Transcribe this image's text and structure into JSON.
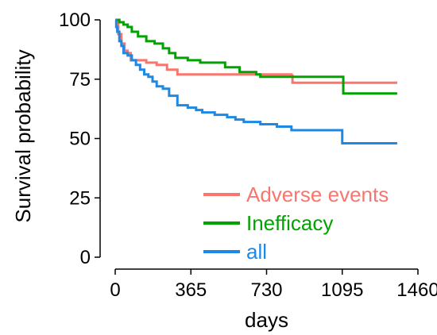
{
  "chart_data": {
    "type": "line",
    "title": "",
    "xlabel": "days",
    "ylabel": "Survival probability",
    "xlim": [
      0,
      1460
    ],
    "ylim": [
      0,
      100
    ],
    "x_ticks": [
      0,
      365,
      730,
      1095,
      1460
    ],
    "y_ticks": [
      0,
      25,
      50,
      75,
      100
    ],
    "x_tick_labels": [
      "0",
      "365",
      "730",
      "1095",
      "1460"
    ],
    "y_tick_labels": [
      "0",
      "25",
      "50",
      "75",
      "100"
    ],
    "grid": false,
    "legend_position": "bottom-right",
    "series": [
      {
        "name": "Adverse events",
        "color": "#F8766D",
        "points": [
          [
            0,
            100
          ],
          [
            15,
            94
          ],
          [
            30,
            90
          ],
          [
            45,
            87
          ],
          [
            60,
            86
          ],
          [
            75,
            83
          ],
          [
            150,
            82
          ],
          [
            200,
            81
          ],
          [
            250,
            79
          ],
          [
            300,
            77
          ],
          [
            350,
            77
          ],
          [
            500,
            77
          ],
          [
            580,
            77
          ],
          [
            640,
            77
          ],
          [
            700,
            77
          ],
          [
            850,
            76.5
          ],
          [
            855,
            73.5
          ],
          [
            1000,
            73.5
          ],
          [
            1090,
            73.5
          ],
          [
            1220,
            73.5
          ],
          [
            1360,
            73.5
          ]
        ]
      },
      {
        "name": "Inefficacy",
        "color": "#00A300",
        "points": [
          [
            0,
            100
          ],
          [
            20,
            99
          ],
          [
            40,
            98
          ],
          [
            60,
            97
          ],
          [
            80,
            95
          ],
          [
            110,
            93
          ],
          [
            150,
            91
          ],
          [
            190,
            90
          ],
          [
            230,
            88
          ],
          [
            260,
            86
          ],
          [
            290,
            84
          ],
          [
            350,
            83
          ],
          [
            410,
            82
          ],
          [
            460,
            82
          ],
          [
            530,
            80
          ],
          [
            600,
            78
          ],
          [
            680,
            77
          ],
          [
            700,
            76
          ],
          [
            850,
            76
          ],
          [
            1000,
            76
          ],
          [
            1095,
            76
          ],
          [
            1100,
            69
          ],
          [
            1200,
            69
          ],
          [
            1360,
            69
          ]
        ]
      },
      {
        "name": "all",
        "color": "#1E88E5",
        "points": [
          [
            0,
            100
          ],
          [
            5,
            97
          ],
          [
            10,
            95
          ],
          [
            20,
            91
          ],
          [
            30,
            89
          ],
          [
            40,
            86
          ],
          [
            60,
            85
          ],
          [
            80,
            83
          ],
          [
            100,
            81
          ],
          [
            120,
            79
          ],
          [
            140,
            77
          ],
          [
            160,
            76
          ],
          [
            180,
            74
          ],
          [
            200,
            72
          ],
          [
            230,
            71
          ],
          [
            260,
            68
          ],
          [
            300,
            64
          ],
          [
            350,
            63
          ],
          [
            390,
            62
          ],
          [
            420,
            61
          ],
          [
            480,
            60
          ],
          [
            540,
            59
          ],
          [
            580,
            58
          ],
          [
            620,
            57
          ],
          [
            700,
            56
          ],
          [
            780,
            55
          ],
          [
            840,
            55
          ],
          [
            850,
            53.5
          ],
          [
            1000,
            53.5
          ],
          [
            1090,
            53.5
          ],
          [
            1095,
            48
          ],
          [
            1200,
            48
          ],
          [
            1360,
            48
          ]
        ]
      }
    ]
  }
}
